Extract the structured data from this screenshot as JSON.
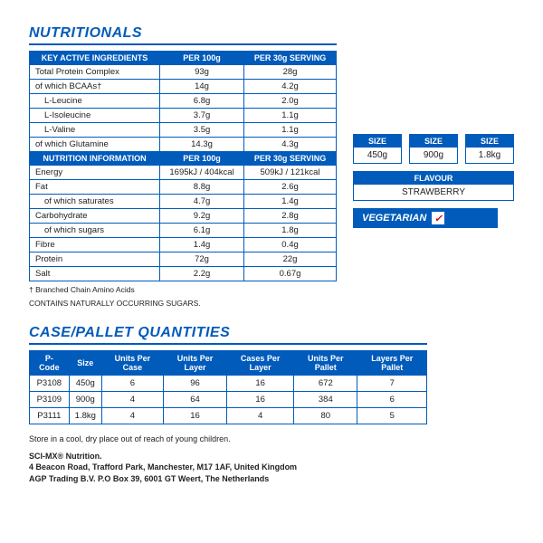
{
  "titles": {
    "nutritionals": "NUTRITIONALS",
    "case_pallet": "CASE/PALLET QUANTITIES"
  },
  "nutri_headers1": {
    "c1": "KEY ACTIVE INGREDIENTS",
    "c2": "PER 100g",
    "c3": "PER 30g SERVING"
  },
  "nutri_section1": [
    {
      "label": "Total Protein Complex",
      "p100": "93g",
      "p30": "28g",
      "indent": false
    },
    {
      "label": "of which BCAAs†",
      "p100": "14g",
      "p30": "4.2g",
      "indent": false
    },
    {
      "label": "L-Leucine",
      "p100": "6.8g",
      "p30": "2.0g",
      "indent": true
    },
    {
      "label": "L-Isoleucine",
      "p100": "3.7g",
      "p30": "1.1g",
      "indent": true
    },
    {
      "label": "L-Valine",
      "p100": "3.5g",
      "p30": "1.1g",
      "indent": true
    },
    {
      "label": "of which Glutamine",
      "p100": "14.3g",
      "p30": "4.3g",
      "indent": false
    }
  ],
  "nutri_headers2": {
    "c1": "NUTRITION INFORMATION",
    "c2": "PER 100g",
    "c3": "PER 30g SERVING"
  },
  "nutri_section2": [
    {
      "label": "Energy",
      "p100": "1695kJ / 404kcal",
      "p30": "509kJ / 121kcal",
      "indent": false
    },
    {
      "label": "Fat",
      "p100": "8.8g",
      "p30": "2.6g",
      "indent": false
    },
    {
      "label": "of which saturates",
      "p100": "4.7g",
      "p30": "1.4g",
      "indent": true
    },
    {
      "label": "Carbohydrate",
      "p100": "9.2g",
      "p30": "2.8g",
      "indent": false
    },
    {
      "label": "of which sugars",
      "p100": "6.1g",
      "p30": "1.8g",
      "indent": true
    },
    {
      "label": "Fibre",
      "p100": "1.4g",
      "p30": "0.4g",
      "indent": false
    },
    {
      "label": "Protein",
      "p100": "72g",
      "p30": "22g",
      "indent": false
    },
    {
      "label": "Salt",
      "p100": "2.2g",
      "p30": "0.67g",
      "indent": false
    }
  ],
  "footnote1": "† Branched Chain Amino Acids",
  "footnote2": "CONTAINS NATURALLY OCCURRING SUGARS.",
  "sizes": {
    "hdr": "SIZE",
    "v1": "450g",
    "v2": "900g",
    "v3": "1.8kg"
  },
  "flavour": {
    "hdr": "FLAVOUR",
    "val": "STRAWBERRY"
  },
  "vegetarian": "VEGETARIAN",
  "case_headers": [
    "P-Code",
    "Size",
    "Units Per Case",
    "Units Per Layer",
    "Cases Per Layer",
    "Units Per Pallet",
    "Layers Per Pallet"
  ],
  "case_rows": [
    [
      "P3108",
      "450g",
      "6",
      "96",
      "16",
      "672",
      "7"
    ],
    [
      "P3109",
      "900g",
      "4",
      "64",
      "16",
      "384",
      "6"
    ],
    [
      "P3111",
      "1.8kg",
      "4",
      "16",
      "4",
      "80",
      "5"
    ]
  ],
  "storage": "Store in a cool, dry place out of reach of young children.",
  "addr1": "SCI-MX® Nutrition.",
  "addr2": "4 Beacon Road, Trafford Park, Manchester, M17 1AF, United Kingdom",
  "addr3": "AGP Trading B.V. P.O Box 39, 6001 GT Weert, The Netherlands",
  "colors": {
    "brand": "#005bbb",
    "check": "#c00"
  }
}
